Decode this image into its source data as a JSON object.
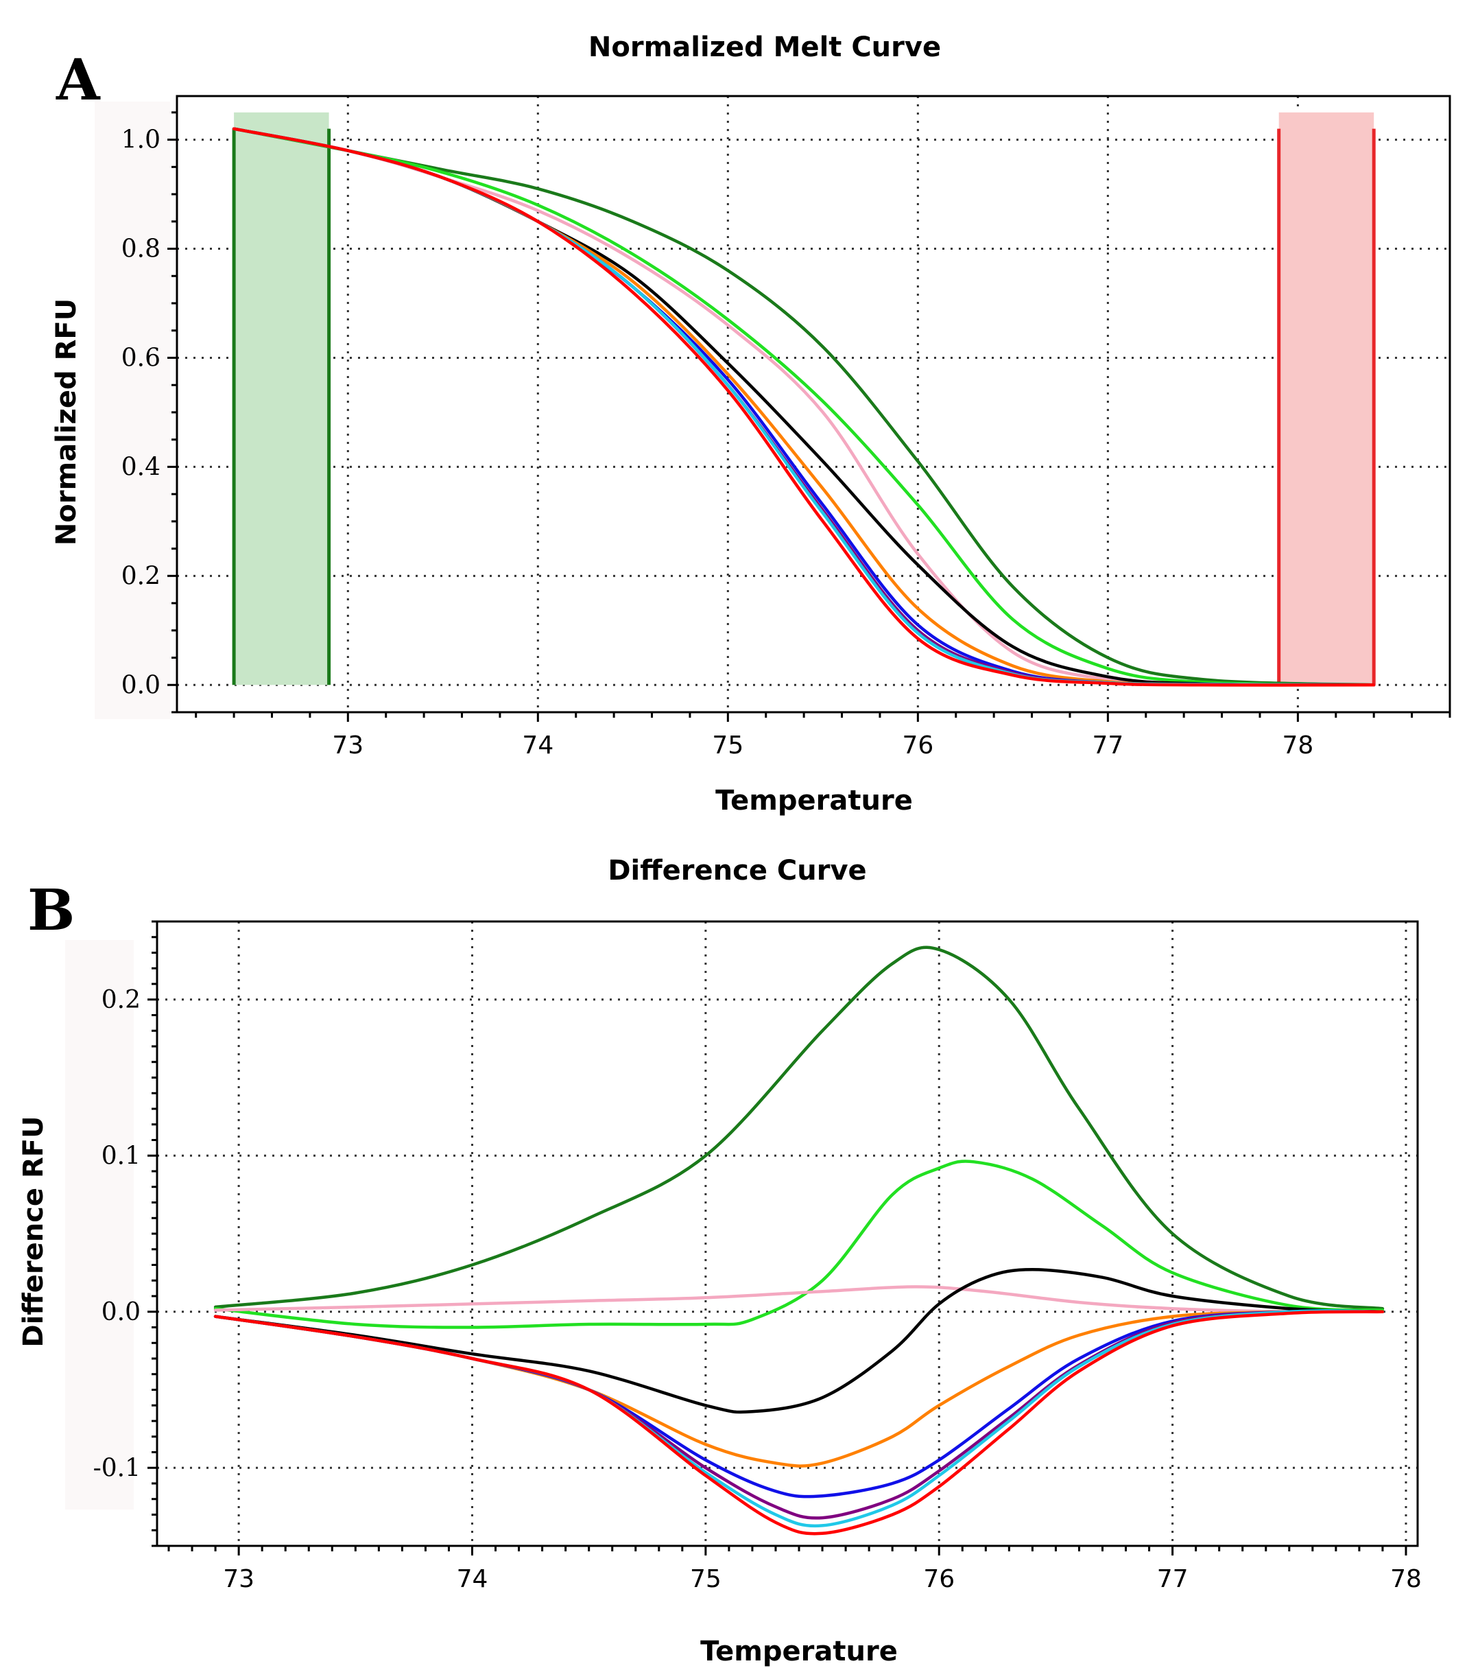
{
  "chart_data": [
    {
      "panel_label": "A",
      "type": "line",
      "title": "Normalized Melt Curve",
      "xlabel": "Temperature",
      "ylabel": "Normalized RFU",
      "xlim": [
        72.1,
        78.8
      ],
      "ylim": [
        -0.05,
        1.08
      ],
      "xticks": [
        73,
        74,
        75,
        76,
        77,
        78
      ],
      "yticks": [
        0.0,
        0.2,
        0.4,
        0.6,
        0.8,
        1.0
      ],
      "ytick_labels": [
        "0.0",
        "0.2",
        "0.4",
        "0.6",
        "0.8",
        "1.0"
      ],
      "grid": true,
      "regions": [
        {
          "name": "pre-melt",
          "start": 72.4,
          "end": 72.9,
          "color": "#c8e6c8",
          "line_color": "#1a7a1a"
        },
        {
          "name": "post-melt",
          "start": 77.9,
          "end": 78.4,
          "color": "#f9c8c8",
          "line_color": "#e8262a"
        }
      ],
      "series": [
        {
          "name": "dark green",
          "color": "#1a7a1a",
          "x": [
            72.4,
            73.0,
            73.5,
            74.0,
            74.5,
            75.0,
            75.5,
            76.0,
            76.5,
            77.0,
            77.5,
            78.4
          ],
          "y": [
            1.02,
            0.98,
            0.945,
            0.91,
            0.85,
            0.76,
            0.62,
            0.41,
            0.18,
            0.05,
            0.01,
            0.0
          ]
        },
        {
          "name": "light green",
          "color": "#22e022",
          "x": [
            72.4,
            73.0,
            73.5,
            74.0,
            74.5,
            75.0,
            75.5,
            76.0,
            76.5,
            77.0,
            77.5,
            78.4
          ],
          "y": [
            1.02,
            0.98,
            0.94,
            0.88,
            0.79,
            0.67,
            0.52,
            0.33,
            0.12,
            0.03,
            0.005,
            0.0
          ]
        },
        {
          "name": "pink",
          "color": "#f4a8c0",
          "x": [
            72.4,
            73.0,
            73.5,
            74.0,
            74.5,
            75.0,
            75.5,
            76.0,
            76.5,
            77.0,
            77.5,
            78.4
          ],
          "y": [
            1.02,
            0.98,
            0.93,
            0.87,
            0.78,
            0.66,
            0.5,
            0.24,
            0.06,
            0.01,
            0.002,
            0.0
          ]
        },
        {
          "name": "black",
          "color": "#000000",
          "x": [
            72.4,
            73.0,
            73.5,
            74.0,
            74.5,
            75.0,
            75.5,
            76.0,
            76.5,
            77.0,
            77.5,
            78.4
          ],
          "y": [
            1.02,
            0.98,
            0.93,
            0.85,
            0.75,
            0.59,
            0.41,
            0.22,
            0.07,
            0.015,
            0.002,
            0.0
          ]
        },
        {
          "name": "orange",
          "color": "#ff8000",
          "x": [
            72.4,
            73.0,
            73.5,
            74.0,
            74.5,
            75.0,
            75.5,
            76.0,
            76.5,
            77.0,
            77.5,
            78.4
          ],
          "y": [
            1.02,
            0.98,
            0.93,
            0.85,
            0.74,
            0.57,
            0.36,
            0.14,
            0.035,
            0.006,
            0.001,
            0.0
          ]
        },
        {
          "name": "blue",
          "color": "#1010e8",
          "x": [
            72.4,
            73.0,
            73.5,
            74.0,
            74.5,
            75.0,
            75.5,
            76.0,
            76.5,
            77.0,
            77.5,
            78.4
          ],
          "y": [
            1.02,
            0.98,
            0.93,
            0.85,
            0.73,
            0.56,
            0.33,
            0.11,
            0.025,
            0.004,
            0.001,
            0.0
          ]
        },
        {
          "name": "purple",
          "color": "#800080",
          "x": [
            72.4,
            73.0,
            73.5,
            74.0,
            74.5,
            75.0,
            75.5,
            76.0,
            76.5,
            77.0,
            77.5,
            78.4
          ],
          "y": [
            1.02,
            0.98,
            0.93,
            0.85,
            0.73,
            0.55,
            0.32,
            0.1,
            0.022,
            0.004,
            0.001,
            0.0
          ]
        },
        {
          "name": "cyan",
          "color": "#20c8e8",
          "x": [
            72.4,
            73.0,
            73.5,
            74.0,
            74.5,
            75.0,
            75.5,
            76.0,
            76.5,
            77.0,
            77.5,
            78.4
          ],
          "y": [
            1.02,
            0.98,
            0.93,
            0.85,
            0.73,
            0.55,
            0.315,
            0.095,
            0.02,
            0.004,
            0.001,
            0.0
          ]
        },
        {
          "name": "red",
          "color": "#ff0000",
          "x": [
            72.4,
            73.0,
            73.5,
            74.0,
            74.5,
            75.0,
            75.5,
            76.0,
            76.5,
            77.0,
            77.5,
            78.4
          ],
          "y": [
            1.02,
            0.98,
            0.93,
            0.85,
            0.72,
            0.54,
            0.3,
            0.085,
            0.018,
            0.003,
            0.0,
            0.0
          ]
        }
      ]
    },
    {
      "panel_label": "B",
      "type": "line",
      "title": "Difference Curve",
      "xlabel": "Temperature",
      "ylabel": "Difference RFU",
      "xlim": [
        72.65,
        78.05
      ],
      "ylim": [
        -0.15,
        0.25
      ],
      "xticks": [
        73,
        74,
        75,
        76,
        77,
        78
      ],
      "yticks": [
        -0.1,
        0.0,
        0.1,
        0.2
      ],
      "ytick_labels": [
        "-0.1",
        "0.0",
        "0.1",
        "0.2"
      ],
      "grid": true,
      "series": [
        {
          "name": "dark green",
          "color": "#1a7a1a",
          "x": [
            72.9,
            73.5,
            74.0,
            74.5,
            75.0,
            75.5,
            75.8,
            76.0,
            76.3,
            76.6,
            77.0,
            77.5,
            77.9
          ],
          "y": [
            0.003,
            0.012,
            0.03,
            0.06,
            0.1,
            0.18,
            0.223,
            0.232,
            0.2,
            0.13,
            0.05,
            0.01,
            0.002
          ]
        },
        {
          "name": "light green",
          "color": "#22e022",
          "x": [
            72.9,
            73.5,
            74.0,
            74.5,
            75.0,
            75.2,
            75.5,
            75.8,
            76.0,
            76.15,
            76.4,
            76.7,
            77.0,
            77.5,
            77.9
          ],
          "y": [
            0.002,
            -0.008,
            -0.01,
            -0.008,
            -0.008,
            -0.005,
            0.02,
            0.075,
            0.092,
            0.096,
            0.085,
            0.055,
            0.025,
            0.004,
            0.001
          ]
        },
        {
          "name": "pink",
          "color": "#f4a8c0",
          "x": [
            72.9,
            73.5,
            74.0,
            74.5,
            75.0,
            75.5,
            75.9,
            76.2,
            76.6,
            77.0,
            77.5,
            77.9
          ],
          "y": [
            0.001,
            0.003,
            0.005,
            0.007,
            0.009,
            0.013,
            0.016,
            0.013,
            0.006,
            0.002,
            0.0,
            0.0
          ]
        },
        {
          "name": "black",
          "color": "#000000",
          "x": [
            72.9,
            73.5,
            74.0,
            74.5,
            75.0,
            75.2,
            75.5,
            75.8,
            76.0,
            76.2,
            76.4,
            76.7,
            77.0,
            77.5,
            77.9
          ],
          "y": [
            -0.003,
            -0.015,
            -0.027,
            -0.038,
            -0.06,
            -0.064,
            -0.055,
            -0.025,
            0.005,
            0.022,
            0.027,
            0.022,
            0.01,
            0.002,
            0.0
          ]
        },
        {
          "name": "orange",
          "color": "#ff8000",
          "x": [
            72.9,
            73.5,
            74.0,
            74.5,
            75.0,
            75.3,
            75.5,
            75.8,
            76.0,
            76.3,
            76.6,
            77.0,
            77.5,
            77.9
          ],
          "y": [
            -0.003,
            -0.016,
            -0.03,
            -0.05,
            -0.085,
            -0.097,
            -0.097,
            -0.08,
            -0.06,
            -0.035,
            -0.015,
            -0.003,
            0.0,
            0.0
          ]
        },
        {
          "name": "blue",
          "color": "#1010e8",
          "x": [
            72.9,
            73.5,
            74.0,
            74.5,
            75.0,
            75.3,
            75.5,
            75.8,
            76.0,
            76.3,
            76.6,
            77.0,
            77.5,
            77.9
          ],
          "y": [
            -0.003,
            -0.016,
            -0.03,
            -0.05,
            -0.095,
            -0.115,
            -0.118,
            -0.11,
            -0.095,
            -0.062,
            -0.03,
            -0.006,
            0.0,
            0.0
          ]
        },
        {
          "name": "purple",
          "color": "#800080",
          "x": [
            72.9,
            73.5,
            74.0,
            74.5,
            75.0,
            75.3,
            75.5,
            75.8,
            76.0,
            76.3,
            76.6,
            77.0,
            77.5,
            77.9
          ],
          "y": [
            -0.003,
            -0.016,
            -0.03,
            -0.05,
            -0.1,
            -0.125,
            -0.132,
            -0.12,
            -0.102,
            -0.068,
            -0.034,
            -0.007,
            0.0,
            0.0
          ]
        },
        {
          "name": "cyan",
          "color": "#20c8e8",
          "x": [
            72.9,
            73.5,
            74.0,
            74.5,
            75.0,
            75.3,
            75.5,
            75.8,
            76.0,
            76.3,
            76.6,
            77.0,
            77.5,
            77.9
          ],
          "y": [
            -0.003,
            -0.016,
            -0.03,
            -0.05,
            -0.103,
            -0.13,
            -0.137,
            -0.124,
            -0.105,
            -0.07,
            -0.035,
            -0.008,
            0.0,
            0.0
          ]
        },
        {
          "name": "red",
          "color": "#ff0000",
          "x": [
            72.9,
            73.5,
            74.0,
            74.5,
            75.0,
            75.3,
            75.5,
            75.8,
            76.0,
            76.3,
            76.6,
            77.0,
            77.5,
            77.9
          ],
          "y": [
            -0.003,
            -0.016,
            -0.03,
            -0.05,
            -0.105,
            -0.135,
            -0.142,
            -0.13,
            -0.112,
            -0.075,
            -0.038,
            -0.009,
            -0.001,
            0.0
          ]
        }
      ]
    }
  ]
}
